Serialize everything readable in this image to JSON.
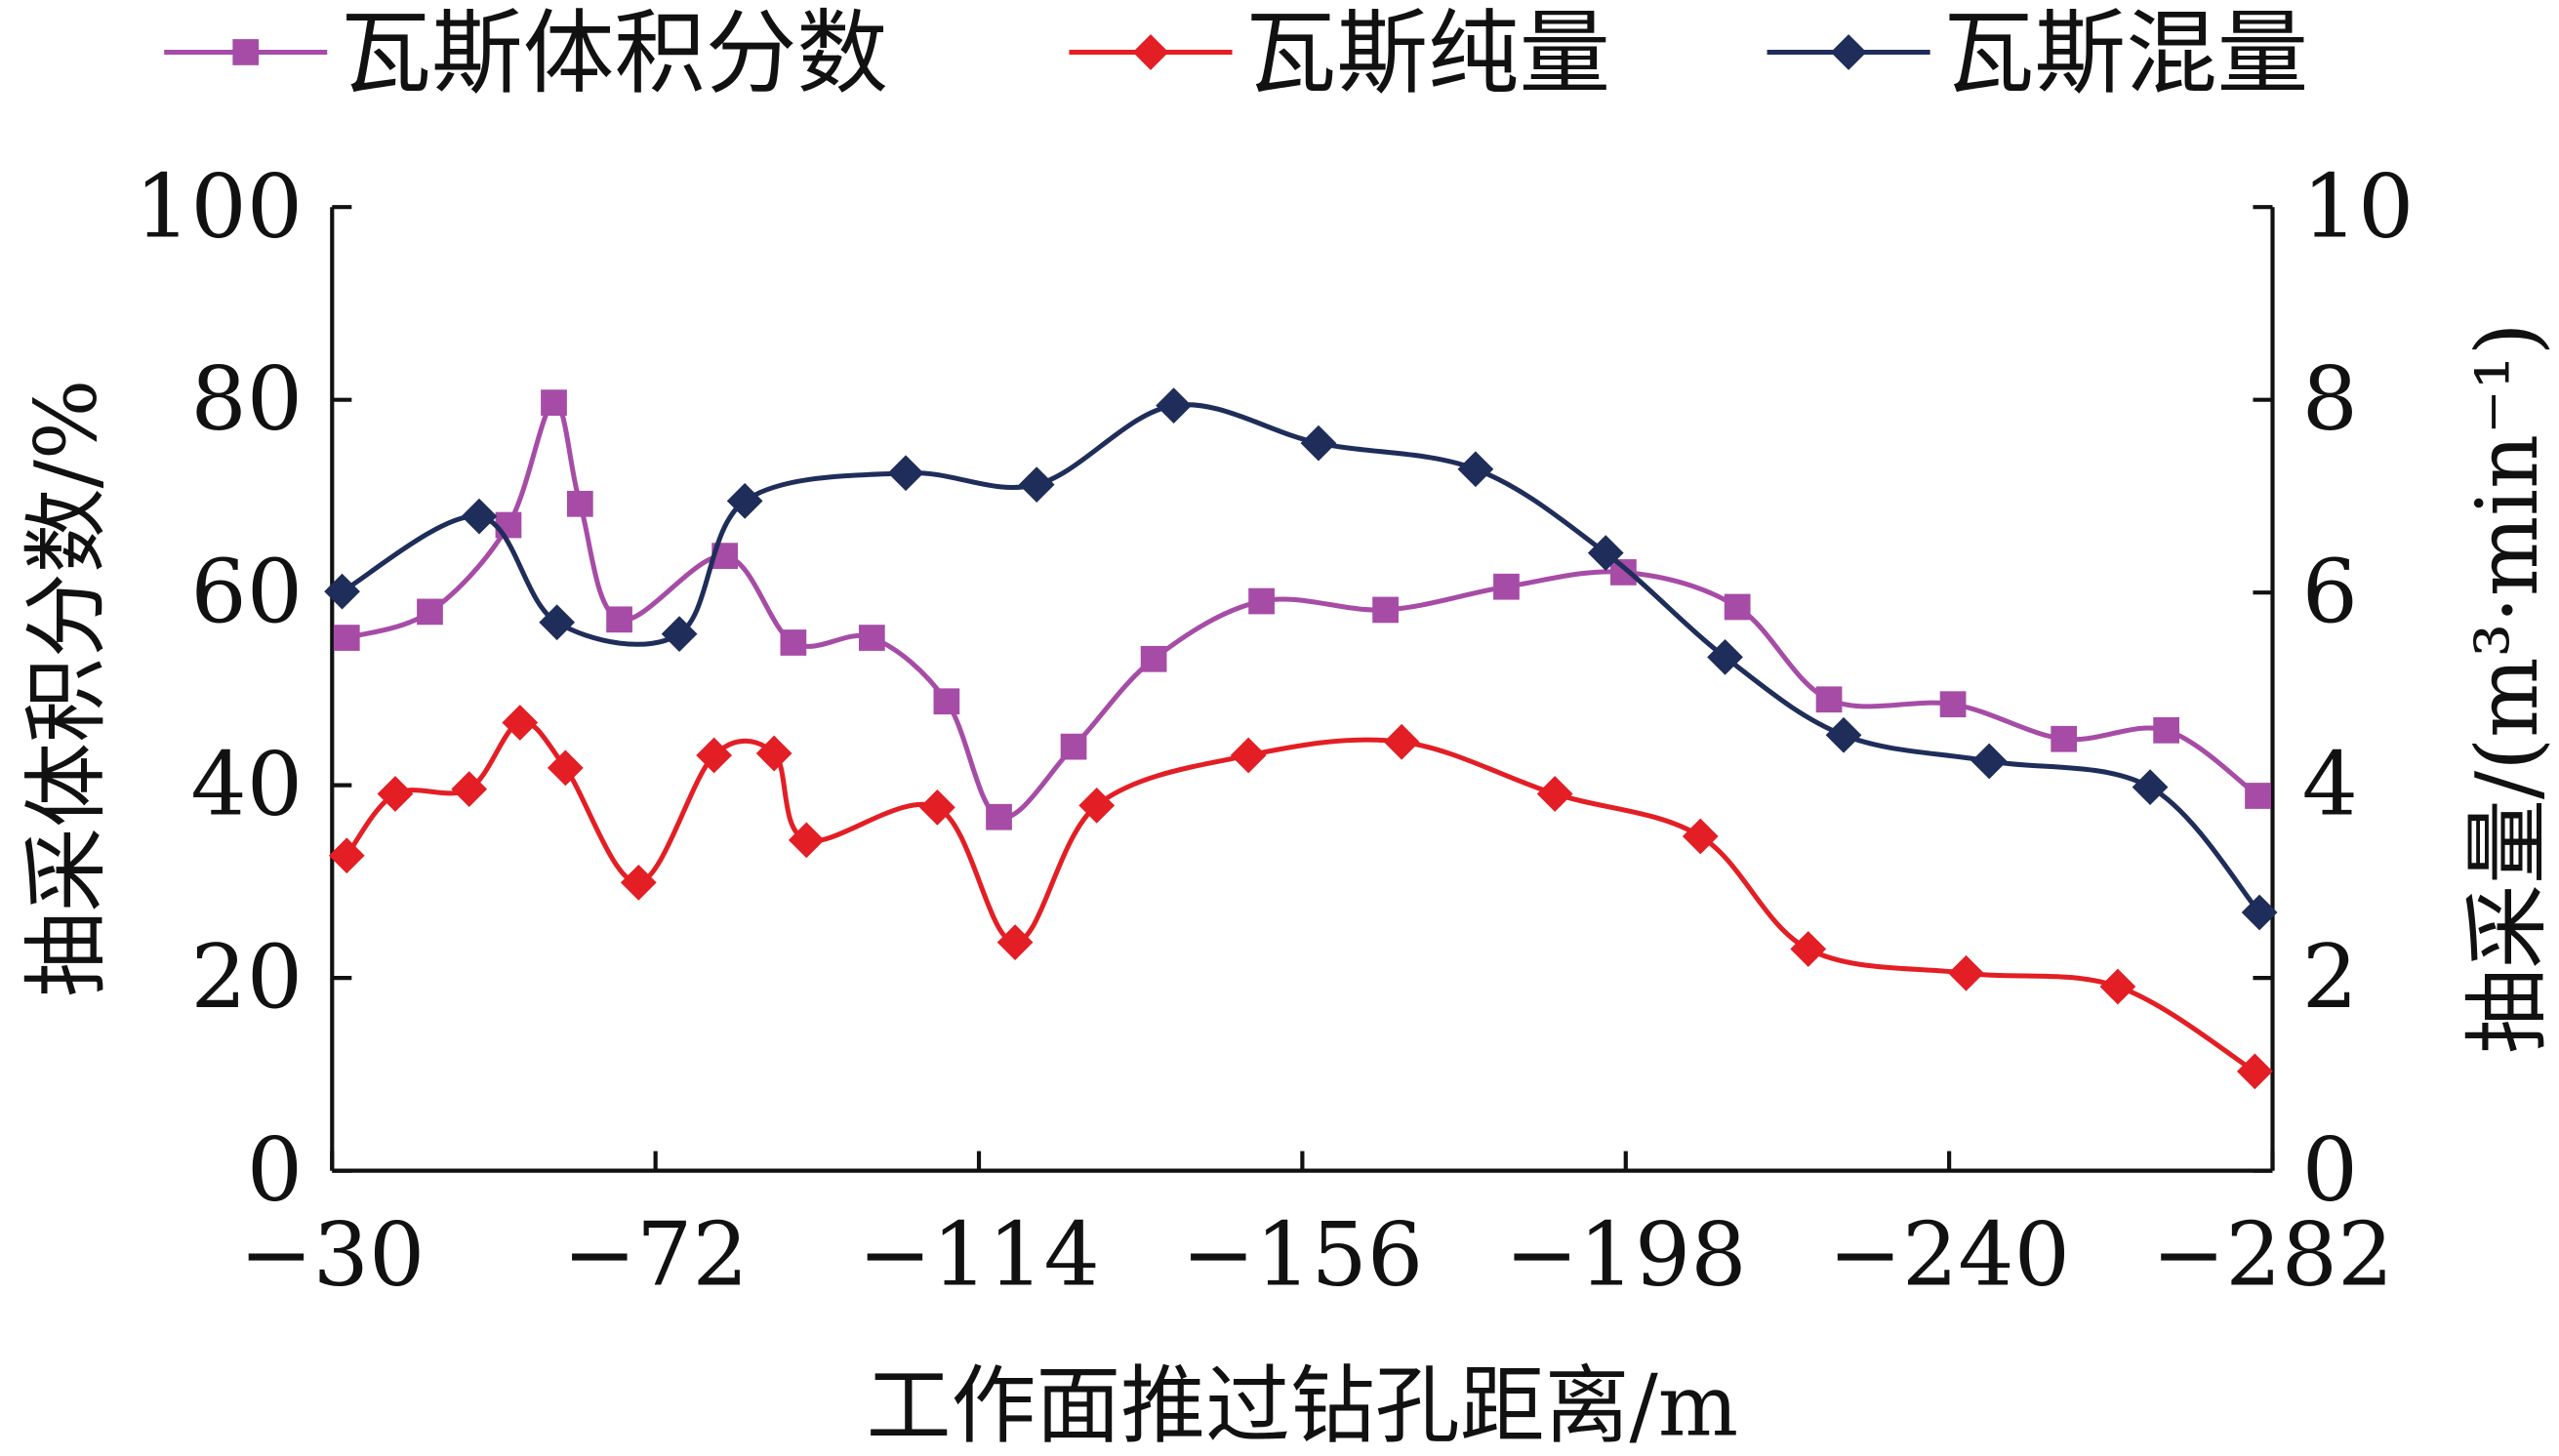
{
  "chart_data": {
    "type": "line",
    "title": "",
    "xlabel": "工作面推过钻孔距离/m",
    "ylabel_left": "抽采体积分数/%",
    "ylabel_right": "抽采量/(m³·min⁻¹)",
    "xlim": [
      -30,
      -282
    ],
    "ylim_left": [
      0,
      100
    ],
    "ylim_right": [
      0,
      10
    ],
    "xticks": [
      "−30",
      "−72",
      "−114",
      "−156",
      "−198",
      "−240",
      "−282"
    ],
    "xtick_values": [
      -30,
      -72,
      -114,
      -156,
      -198,
      -240,
      -282
    ],
    "yticks_left": [
      "0",
      "20",
      "40",
      "60",
      "80",
      "100"
    ],
    "yticks_right": [
      "0",
      "2",
      "4",
      "6",
      "8",
      "10"
    ],
    "grid": false,
    "legend_position": "top",
    "series": [
      {
        "name": "瓦斯体积分数",
        "axis": "left",
        "marker": "square",
        "color": "#a64ca6",
        "x": [
          -31.9,
          -42.7,
          -52.9,
          -58.8,
          -62.2,
          -67.3,
          -81.0,
          -89.9,
          -100.1,
          -109.8,
          -116.6,
          -126.3,
          -136.7,
          -150.7,
          -166.8,
          -182.5,
          -197.7,
          -212.5,
          -224.4,
          -240.5,
          -254.9,
          -268.2,
          -280.1
        ],
        "y": [
          55.3,
          58.0,
          67.0,
          79.7,
          69.2,
          57.2,
          63.8,
          54.8,
          55.3,
          48.7,
          36.7,
          44.0,
          53.1,
          59.1,
          58.2,
          60.6,
          62.1,
          58.5,
          48.9,
          48.4,
          44.8,
          45.7,
          38.9
        ]
      },
      {
        "name": "瓦斯纯量",
        "axis": "right",
        "marker": "diamond",
        "color": "#e31e24",
        "x": [
          -31.9,
          -38.2,
          -47.8,
          -54.4,
          -60.3,
          -69.8,
          -79.6,
          -87.4,
          -91.6,
          -108.6,
          -118.7,
          -129.3,
          -149.0,
          -168.9,
          -188.8,
          -207.7,
          -221.7,
          -242.2,
          -261.9,
          -279.7
        ],
        "y": [
          3.27,
          3.91,
          3.96,
          4.65,
          4.18,
          2.99,
          4.31,
          4.33,
          3.43,
          3.77,
          2.37,
          3.79,
          4.31,
          4.45,
          3.91,
          3.47,
          2.3,
          2.05,
          1.91,
          1.03
        ]
      },
      {
        "name": "瓦斯混量",
        "axis": "right",
        "marker": "diamond",
        "color": "#1f2d5a",
        "x": [
          -31.3,
          -49.1,
          -59.2,
          -75.1,
          -83.6,
          -104.5,
          -121.5,
          -139.3,
          -158.1,
          -178.5,
          -195.4,
          -210.9,
          -226.3,
          -245.2,
          -266.1,
          -280.3
        ],
        "y": [
          6.01,
          6.79,
          5.69,
          5.57,
          6.95,
          7.24,
          7.12,
          7.94,
          7.55,
          7.28,
          6.41,
          5.33,
          4.52,
          4.25,
          3.98,
          2.68
        ]
      }
    ]
  }
}
